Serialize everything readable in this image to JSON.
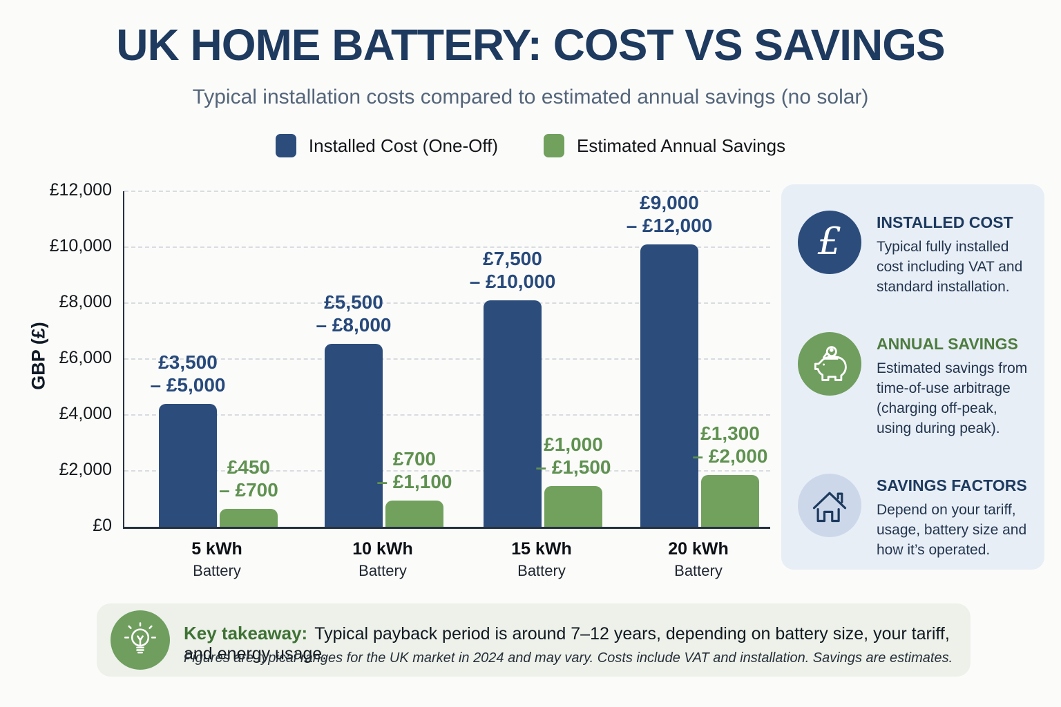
{
  "header": {
    "title": "UK HOME BATTERY: COST VS SAVINGS",
    "subtitle": "Typical installation costs compared to estimated annual savings (no solar)"
  },
  "legend": [
    {
      "label": "Installed Cost (One-Off)",
      "color": "#2c4d7c"
    },
    {
      "label": "Estimated Annual Savings",
      "color": "#72a15e"
    }
  ],
  "chart_data": {
    "type": "bar",
    "title": "UK Home Battery: Cost vs Savings",
    "ylabel": "GBP (£)",
    "ylim": [
      0,
      12000
    ],
    "grid": "horizontal dashed every £2,000",
    "legend_position": "top",
    "yticks": [
      {
        "value": 0,
        "label": "£0"
      },
      {
        "value": 2000,
        "label": "£2,000"
      },
      {
        "value": 4000,
        "label": "£4,000"
      },
      {
        "value": 6000,
        "label": "£6,000"
      },
      {
        "value": 8000,
        "label": "£8,000"
      },
      {
        "value": 10000,
        "label": "£10,000"
      },
      {
        "value": 12000,
        "label": "£12,000"
      }
    ],
    "categories": [
      "5 kWh",
      "10 kWh",
      "15 kWh",
      "20 kWh"
    ],
    "category_subtitle": "Battery",
    "series": [
      {
        "name": "Installed Cost (One-Off)",
        "color": "#2c4d7c",
        "label_color": "#27497b",
        "values": [
          4400,
          6550,
          8100,
          10100
        ],
        "range_labels": [
          [
            "£3,500",
            "– £5,000"
          ],
          [
            "£5,500",
            "– £8,000"
          ],
          [
            "£7,500",
            "– £10,000"
          ],
          [
            "£9,000",
            "– £12,000"
          ]
        ]
      },
      {
        "name": "Estimated Annual Savings",
        "color": "#72a15e",
        "label_color": "#5f9150",
        "values": [
          650,
          950,
          1450,
          1850
        ],
        "range_labels": [
          [
            "£450",
            "– £700"
          ],
          [
            "£700",
            "– £1,100"
          ],
          [
            "£1,000",
            "– £1,500"
          ],
          [
            "£1,300",
            "– £2,000"
          ]
        ]
      }
    ]
  },
  "sidebar": {
    "items": [
      {
        "icon": "pound-icon",
        "symbol": "£",
        "circle_color": "#2c4d7c",
        "heading": "INSTALLED COST",
        "heading_color": "#1d3a5f",
        "body": "Typical fully installed cost including VAT and standard installation."
      },
      {
        "icon": "piggy-bank-icon",
        "circle_color": "#6f9e5e",
        "heading": "ANNUAL SAVINGS",
        "heading_color": "#4d7c3f",
        "body": "Estimated savings from time-of-use arbitrage (charging off-peak, using during peak)."
      },
      {
        "icon": "house-icon",
        "circle_color": "#ccd8ea",
        "heading": "SAVINGS FACTORS",
        "heading_color": "#1d3a5f",
        "body": "Depend on your tariff, usage, battery size and how it’s operated."
      }
    ]
  },
  "footer": {
    "icon_color": "#6f9e5e",
    "label": "Key takeaway:",
    "text": "Typical payback period is around 7–12 years, depending on battery size, your tariff, and energy usage.",
    "note": "Figures are typical ranges for the UK market in 2024 and may vary. Costs include VAT and installation. Savings are estimates."
  }
}
